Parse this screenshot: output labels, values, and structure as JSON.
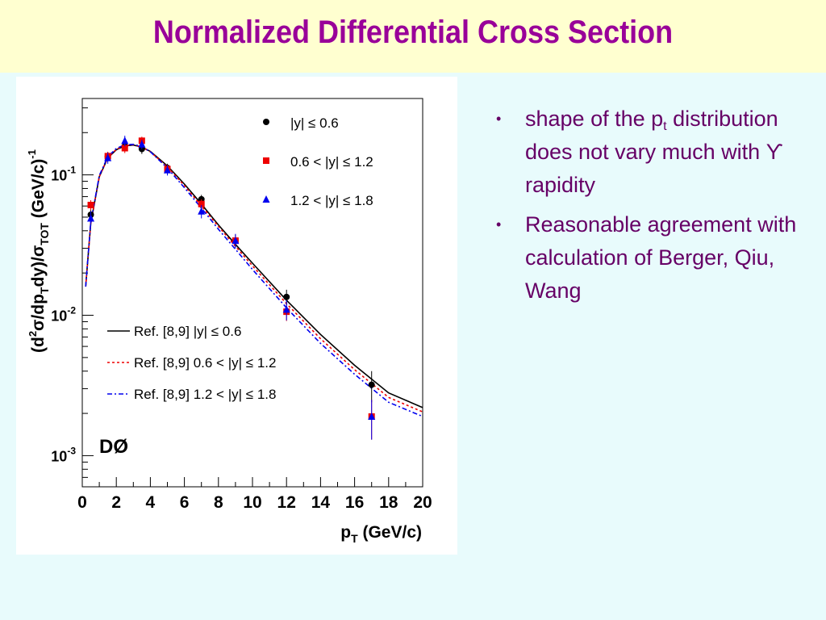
{
  "slide": {
    "title": "Normalized Differential Cross Section",
    "bullet_marker": "•",
    "bullets": [
      {
        "pre": "shape of the p",
        "sub": "t",
        "post": " distribution does not vary much with ϒ rapidity"
      },
      {
        "pre": "Reasonable agreement with calculation of Berger, Qiu, Wang",
        "sub": "",
        "post": ""
      }
    ],
    "colors": {
      "title": "#990099",
      "bullet_text": "#660066",
      "title_background": "#ffffd0",
      "slide_background": "#e8fbfc"
    }
  },
  "chart_data": {
    "type": "scatter",
    "experiment_label": "DØ",
    "xlabel": "p_T (GeV/c)",
    "ylabel": "(d²σ/dp_T dy)/σ_TOT (GeV/c)⁻¹",
    "xlim": [
      0,
      20
    ],
    "ylim": [
      0.0006,
      0.35
    ],
    "y_scale": "log",
    "x_ticks": [
      "0",
      "2",
      "4",
      "6",
      "8",
      "10",
      "12",
      "14",
      "16",
      "18",
      "20"
    ],
    "y_ticks": [
      {
        "value": 0.1,
        "base": "10",
        "exp": "-1"
      },
      {
        "value": 0.01,
        "base": "10",
        "exp": "-2"
      },
      {
        "value": 0.001,
        "base": "10",
        "exp": "-3"
      }
    ],
    "legend_placement": "top-right",
    "series": [
      {
        "name": "|y| ≤ 0.6",
        "marker": "circle",
        "color": "#000000",
        "x": [
          0.5,
          1.5,
          2.5,
          3.5,
          5,
          7,
          9,
          12,
          17
        ],
        "y": [
          0.052,
          0.135,
          0.16,
          0.153,
          0.112,
          0.067,
          0.034,
          0.0135,
          0.0032
        ],
        "err": [
          0.005,
          0.01,
          0.012,
          0.012,
          0.008,
          0.005,
          0.0035,
          0.0017,
          0.0008
        ]
      },
      {
        "name": "0.6 < |y| ≤ 1.2",
        "marker": "square",
        "color": "#ee0000",
        "x": [
          0.5,
          1.5,
          2.5,
          3.5,
          5,
          7,
          9,
          12,
          17
        ],
        "y": [
          0.061,
          0.136,
          0.155,
          0.175,
          0.11,
          0.062,
          0.034,
          0.0106,
          0.0019
        ],
        "err": [
          0.005,
          0.01,
          0.012,
          0.012,
          0.008,
          0.005,
          0.0035,
          0.0015,
          0.0006
        ]
      },
      {
        "name": "1.2 < |y| ≤ 1.8",
        "marker": "triangle",
        "color": "#0000ee",
        "x": [
          0.5,
          1.5,
          2.5,
          3.5,
          5,
          7,
          9,
          12,
          17
        ],
        "y": [
          0.049,
          0.132,
          0.175,
          0.165,
          0.108,
          0.055,
          0.034,
          0.011,
          0.0019
        ],
        "err": [
          0.006,
          0.012,
          0.015,
          0.013,
          0.009,
          0.006,
          0.004,
          0.0018,
          0.0006
        ]
      }
    ],
    "curves": [
      {
        "name": "Ref. [8,9] |y| ≤ 0.6",
        "color": "#000000",
        "style": "solid",
        "x": [
          0.2,
          0.5,
          1,
          1.5,
          2,
          2.5,
          3,
          3.5,
          4,
          5,
          6,
          7,
          8,
          9,
          10,
          12,
          14,
          16,
          18,
          20
        ],
        "y": [
          0.016,
          0.045,
          0.097,
          0.132,
          0.151,
          0.161,
          0.163,
          0.158,
          0.147,
          0.116,
          0.086,
          0.062,
          0.044,
          0.032,
          0.0235,
          0.0128,
          0.0073,
          0.0044,
          0.0028,
          0.0022
        ]
      },
      {
        "name": "Ref. [8,9] 0.6 < |y| ≤ 1.2",
        "color": "#ee0000",
        "style": "dotted",
        "x": [
          0.2,
          0.5,
          1,
          1.5,
          2,
          2.5,
          3,
          3.5,
          4,
          5,
          6,
          7,
          8,
          9,
          10,
          12,
          14,
          16,
          18,
          20
        ],
        "y": [
          0.016,
          0.045,
          0.097,
          0.133,
          0.152,
          0.162,
          0.164,
          0.158,
          0.146,
          0.114,
          0.084,
          0.06,
          0.043,
          0.031,
          0.0225,
          0.0121,
          0.0068,
          0.0041,
          0.0026,
          0.00205
        ]
      },
      {
        "name": "Ref. [8,9] 1.2 < |y| ≤ 1.8",
        "color": "#0000ee",
        "style": "dashdot",
        "x": [
          0.2,
          0.5,
          1,
          1.5,
          2,
          2.5,
          3,
          3.5,
          4,
          5,
          6,
          7,
          8,
          9,
          10,
          12,
          14,
          16,
          18,
          20
        ],
        "y": [
          0.016,
          0.046,
          0.099,
          0.135,
          0.154,
          0.164,
          0.165,
          0.159,
          0.146,
          0.112,
          0.081,
          0.058,
          0.041,
          0.0295,
          0.0212,
          0.0113,
          0.0063,
          0.0038,
          0.0024,
          0.0019
        ]
      }
    ]
  }
}
